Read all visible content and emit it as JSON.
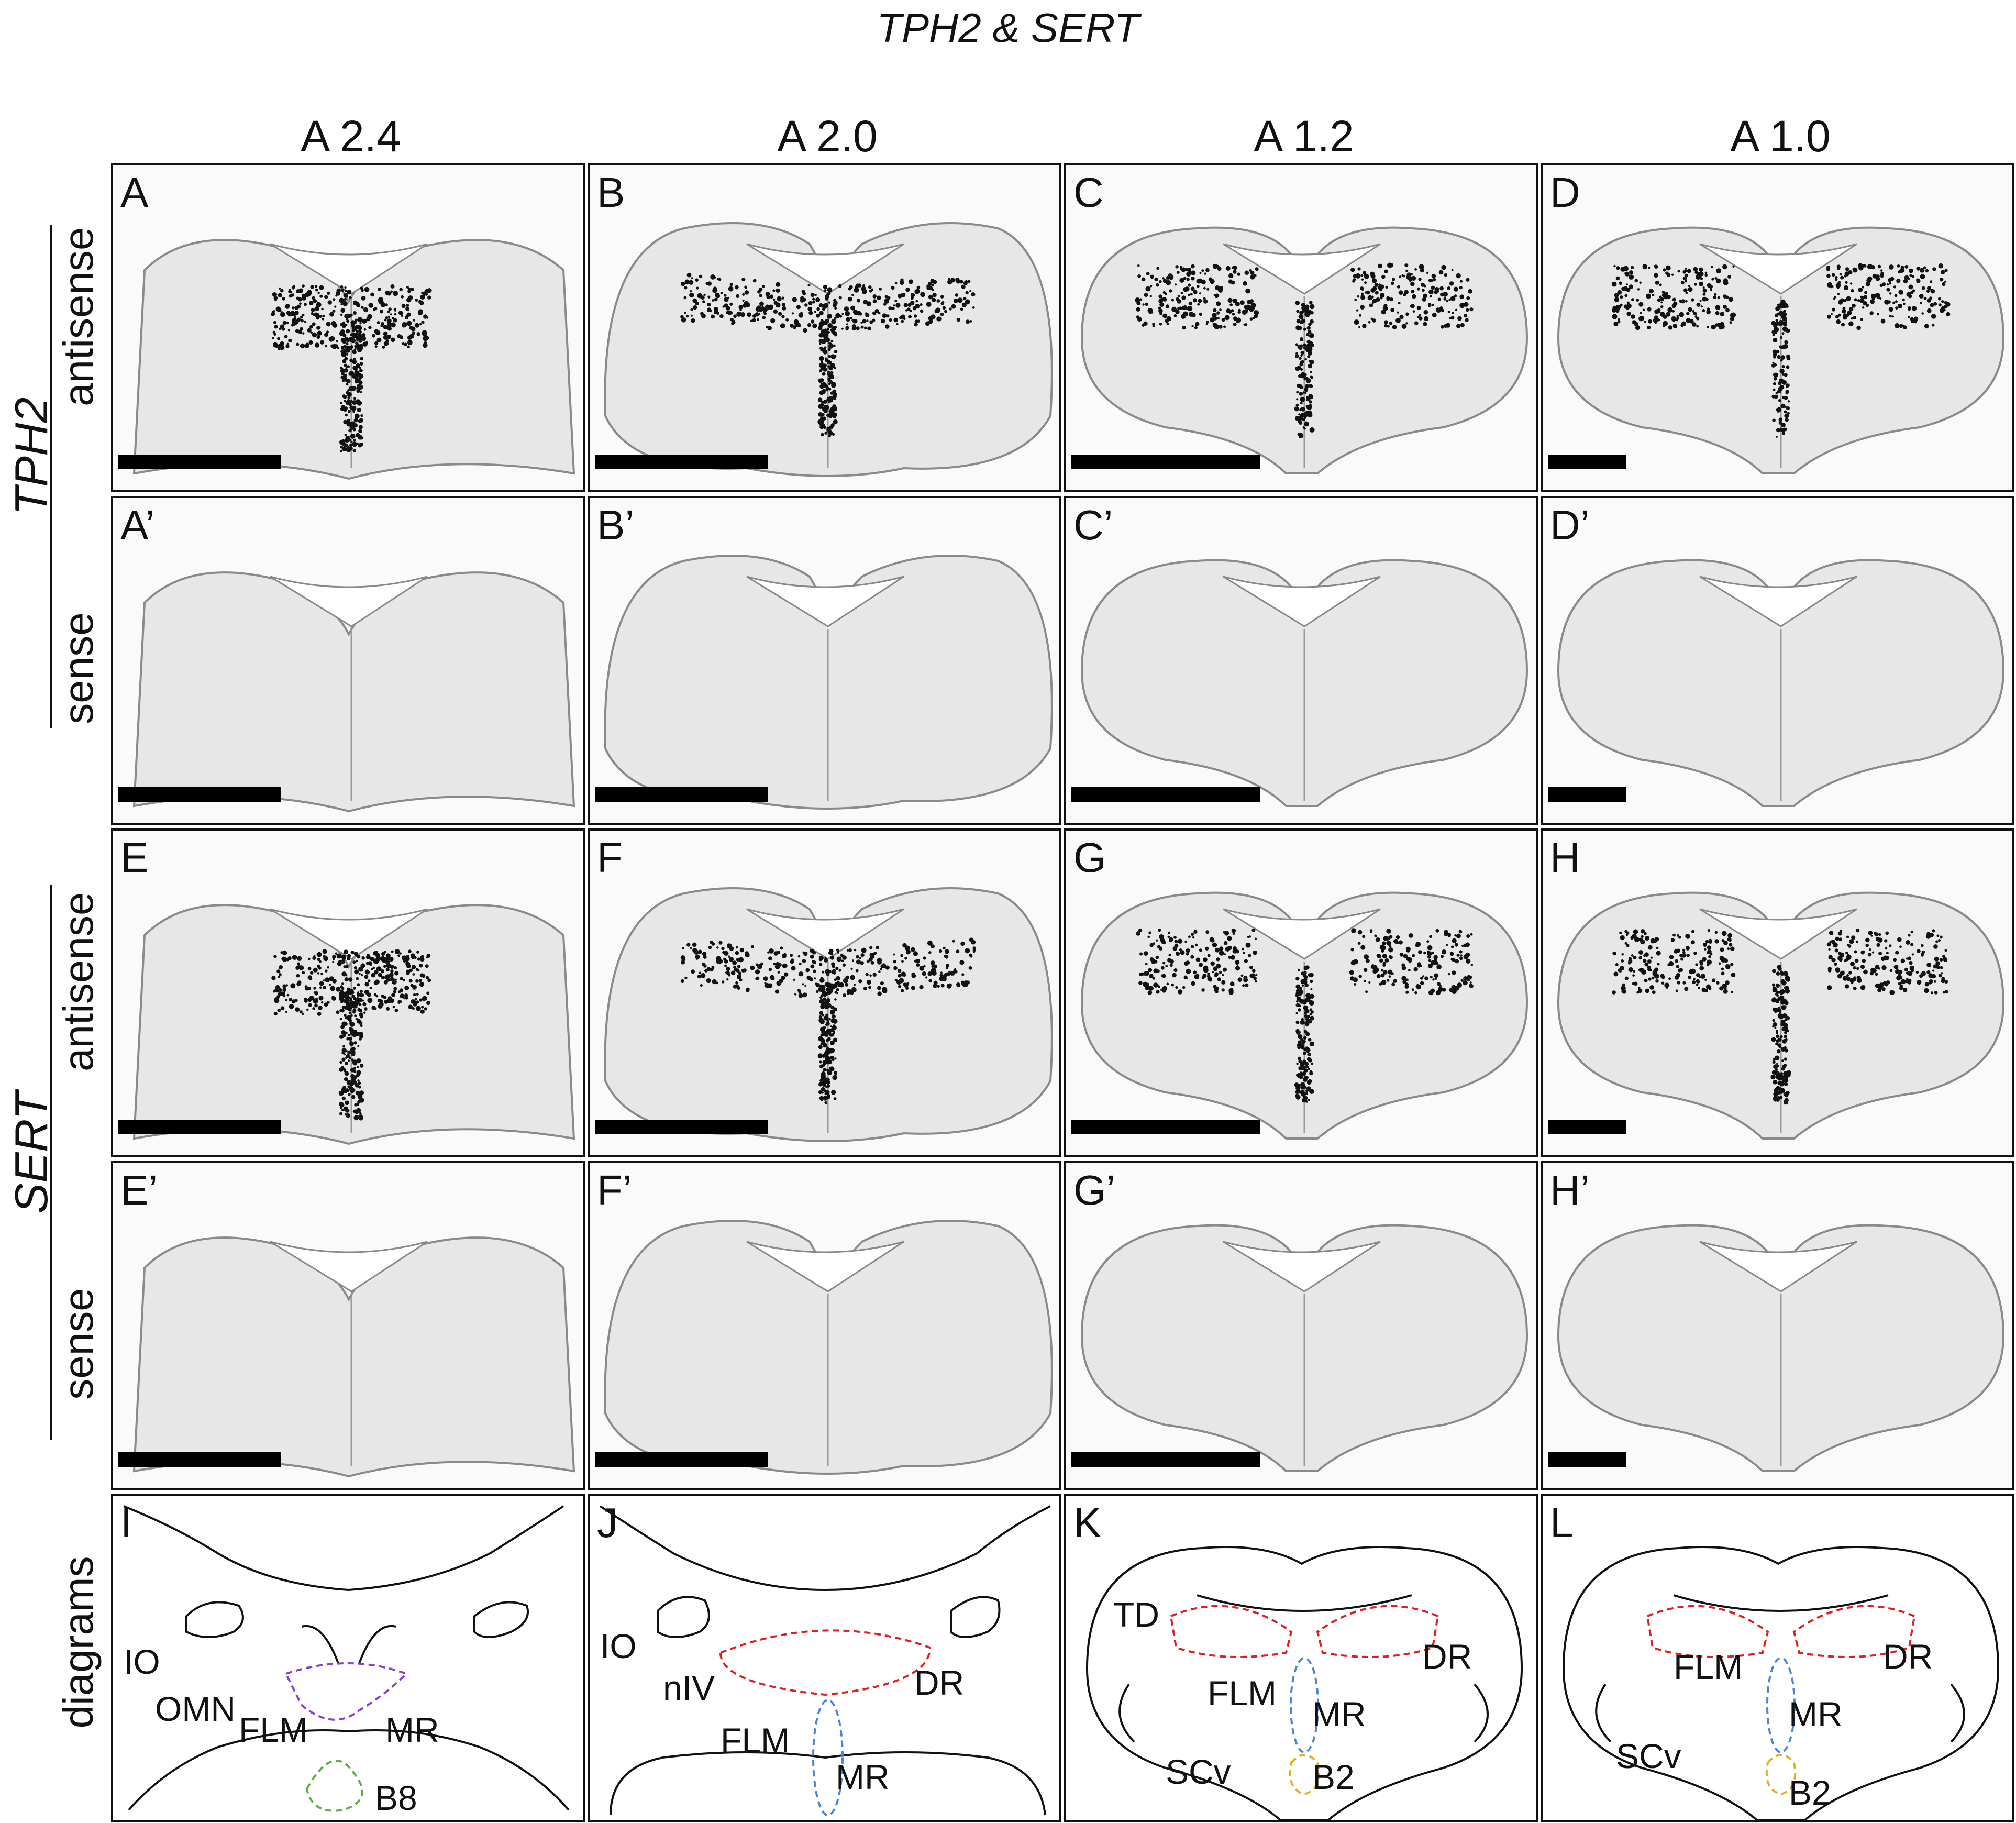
{
  "figure_title": "TPH2 & SERT",
  "columns": [
    "A 2.4",
    "A 2.0",
    "A 1.2",
    "A 1.0"
  ],
  "row_groups": [
    {
      "gene": "TPH2",
      "antisense": "antisense",
      "sense": "sense"
    },
    {
      "gene": "SERT",
      "antisense": "antisense",
      "sense": "sense"
    }
  ],
  "diagrams_label": "diagrams",
  "panel_labels": {
    "row1": [
      "A",
      "B",
      "C",
      "D"
    ],
    "row2": [
      "A’",
      "B’",
      "C’",
      "D’"
    ],
    "row3": [
      "E",
      "F",
      "G",
      "H"
    ],
    "row4": [
      "E’",
      "F’",
      "G’",
      "H’"
    ],
    "row5": [
      "I",
      "J",
      "K",
      "L"
    ]
  },
  "diagram_labels": {
    "I": [
      "IO",
      "OMN",
      "FLM",
      "MR",
      "B8"
    ],
    "J": [
      "IO",
      "nIV",
      "FLM",
      "DR",
      "MR"
    ],
    "K": [
      "TD",
      "DR",
      "FLM",
      "MR",
      "SCv",
      "B2"
    ],
    "L": [
      "FLM",
      "DR",
      "MR",
      "SCv",
      "B2"
    ]
  },
  "colors": {
    "DR": "#e02020",
    "MR_purple": "#8a3fd0",
    "MR_blue": "#4a86d8",
    "B8": "#5cb040",
    "B2": "#e0b020",
    "FLM_red": "#c03030"
  },
  "scale_bar_count_per_panel": 1
}
